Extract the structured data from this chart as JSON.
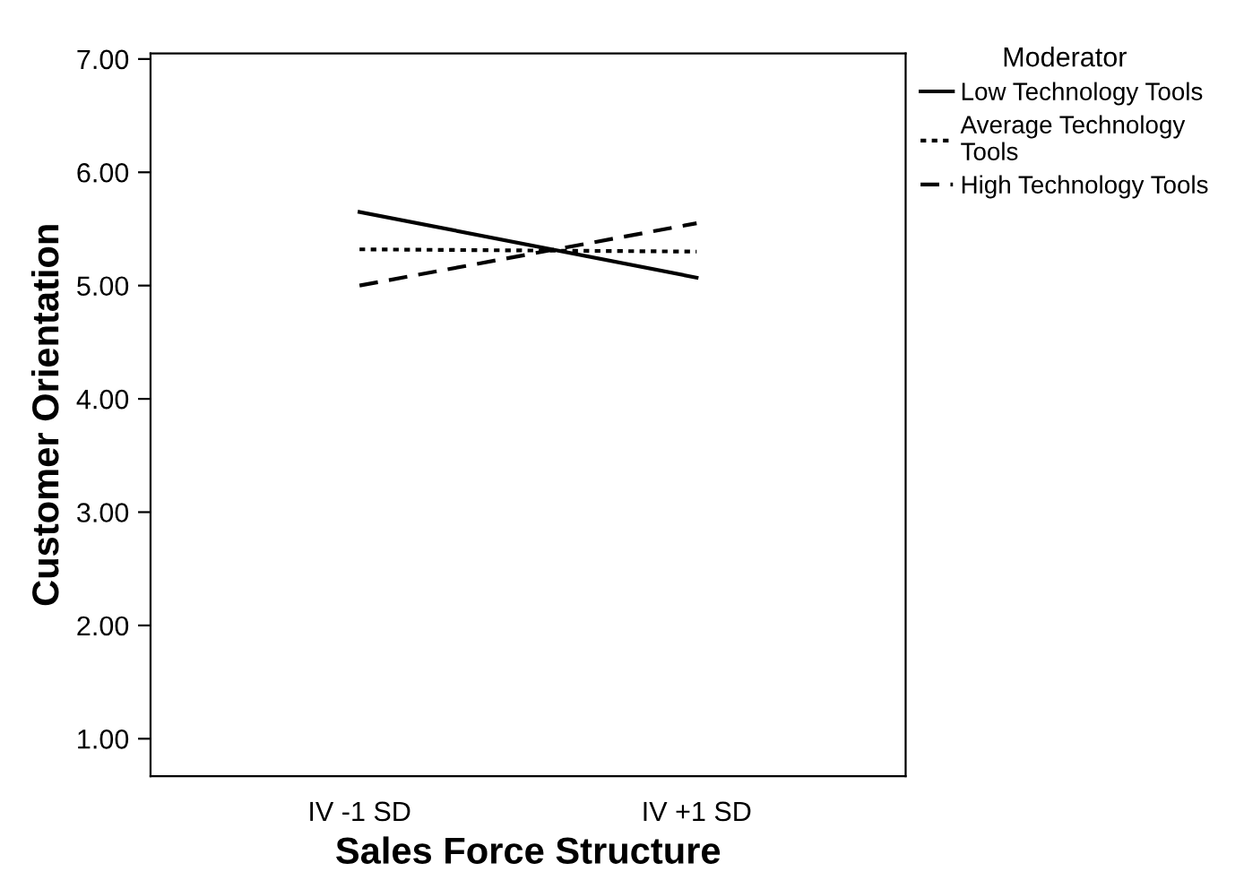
{
  "chart_data": {
    "type": "line",
    "xlabel": "Sales Force Structure",
    "ylabel": "Customer Orientation",
    "legend_title": "Moderator",
    "categories": [
      "IV -1 SD",
      "IV +1 SD"
    ],
    "series": [
      {
        "name": "Low Technology Tools",
        "color": "#000000",
        "values": [
          5.65,
          5.07
        ],
        "line_style": "solid"
      },
      {
        "name": "Average Technology\nTools",
        "color": "#000000",
        "values": [
          5.32,
          5.3
        ],
        "line_style": "dotted"
      },
      {
        "name": "High Technology Tools",
        "color": "#000000",
        "values": [
          5.0,
          5.55
        ],
        "line_style": "dashed"
      }
    ],
    "ylim": [
      0.67,
      7.05
    ],
    "yticks": [
      {
        "value": 1,
        "label": "1.00"
      },
      {
        "value": 2,
        "label": "2.00"
      },
      {
        "value": 3,
        "label": "3.00"
      },
      {
        "value": 4,
        "label": "4.00"
      },
      {
        "value": 5,
        "label": "5.00"
      },
      {
        "value": 6,
        "label": "6.00"
      },
      {
        "value": 7,
        "label": "7.00"
      }
    ],
    "grid": false,
    "legend": "right",
    "marker": "none"
  }
}
